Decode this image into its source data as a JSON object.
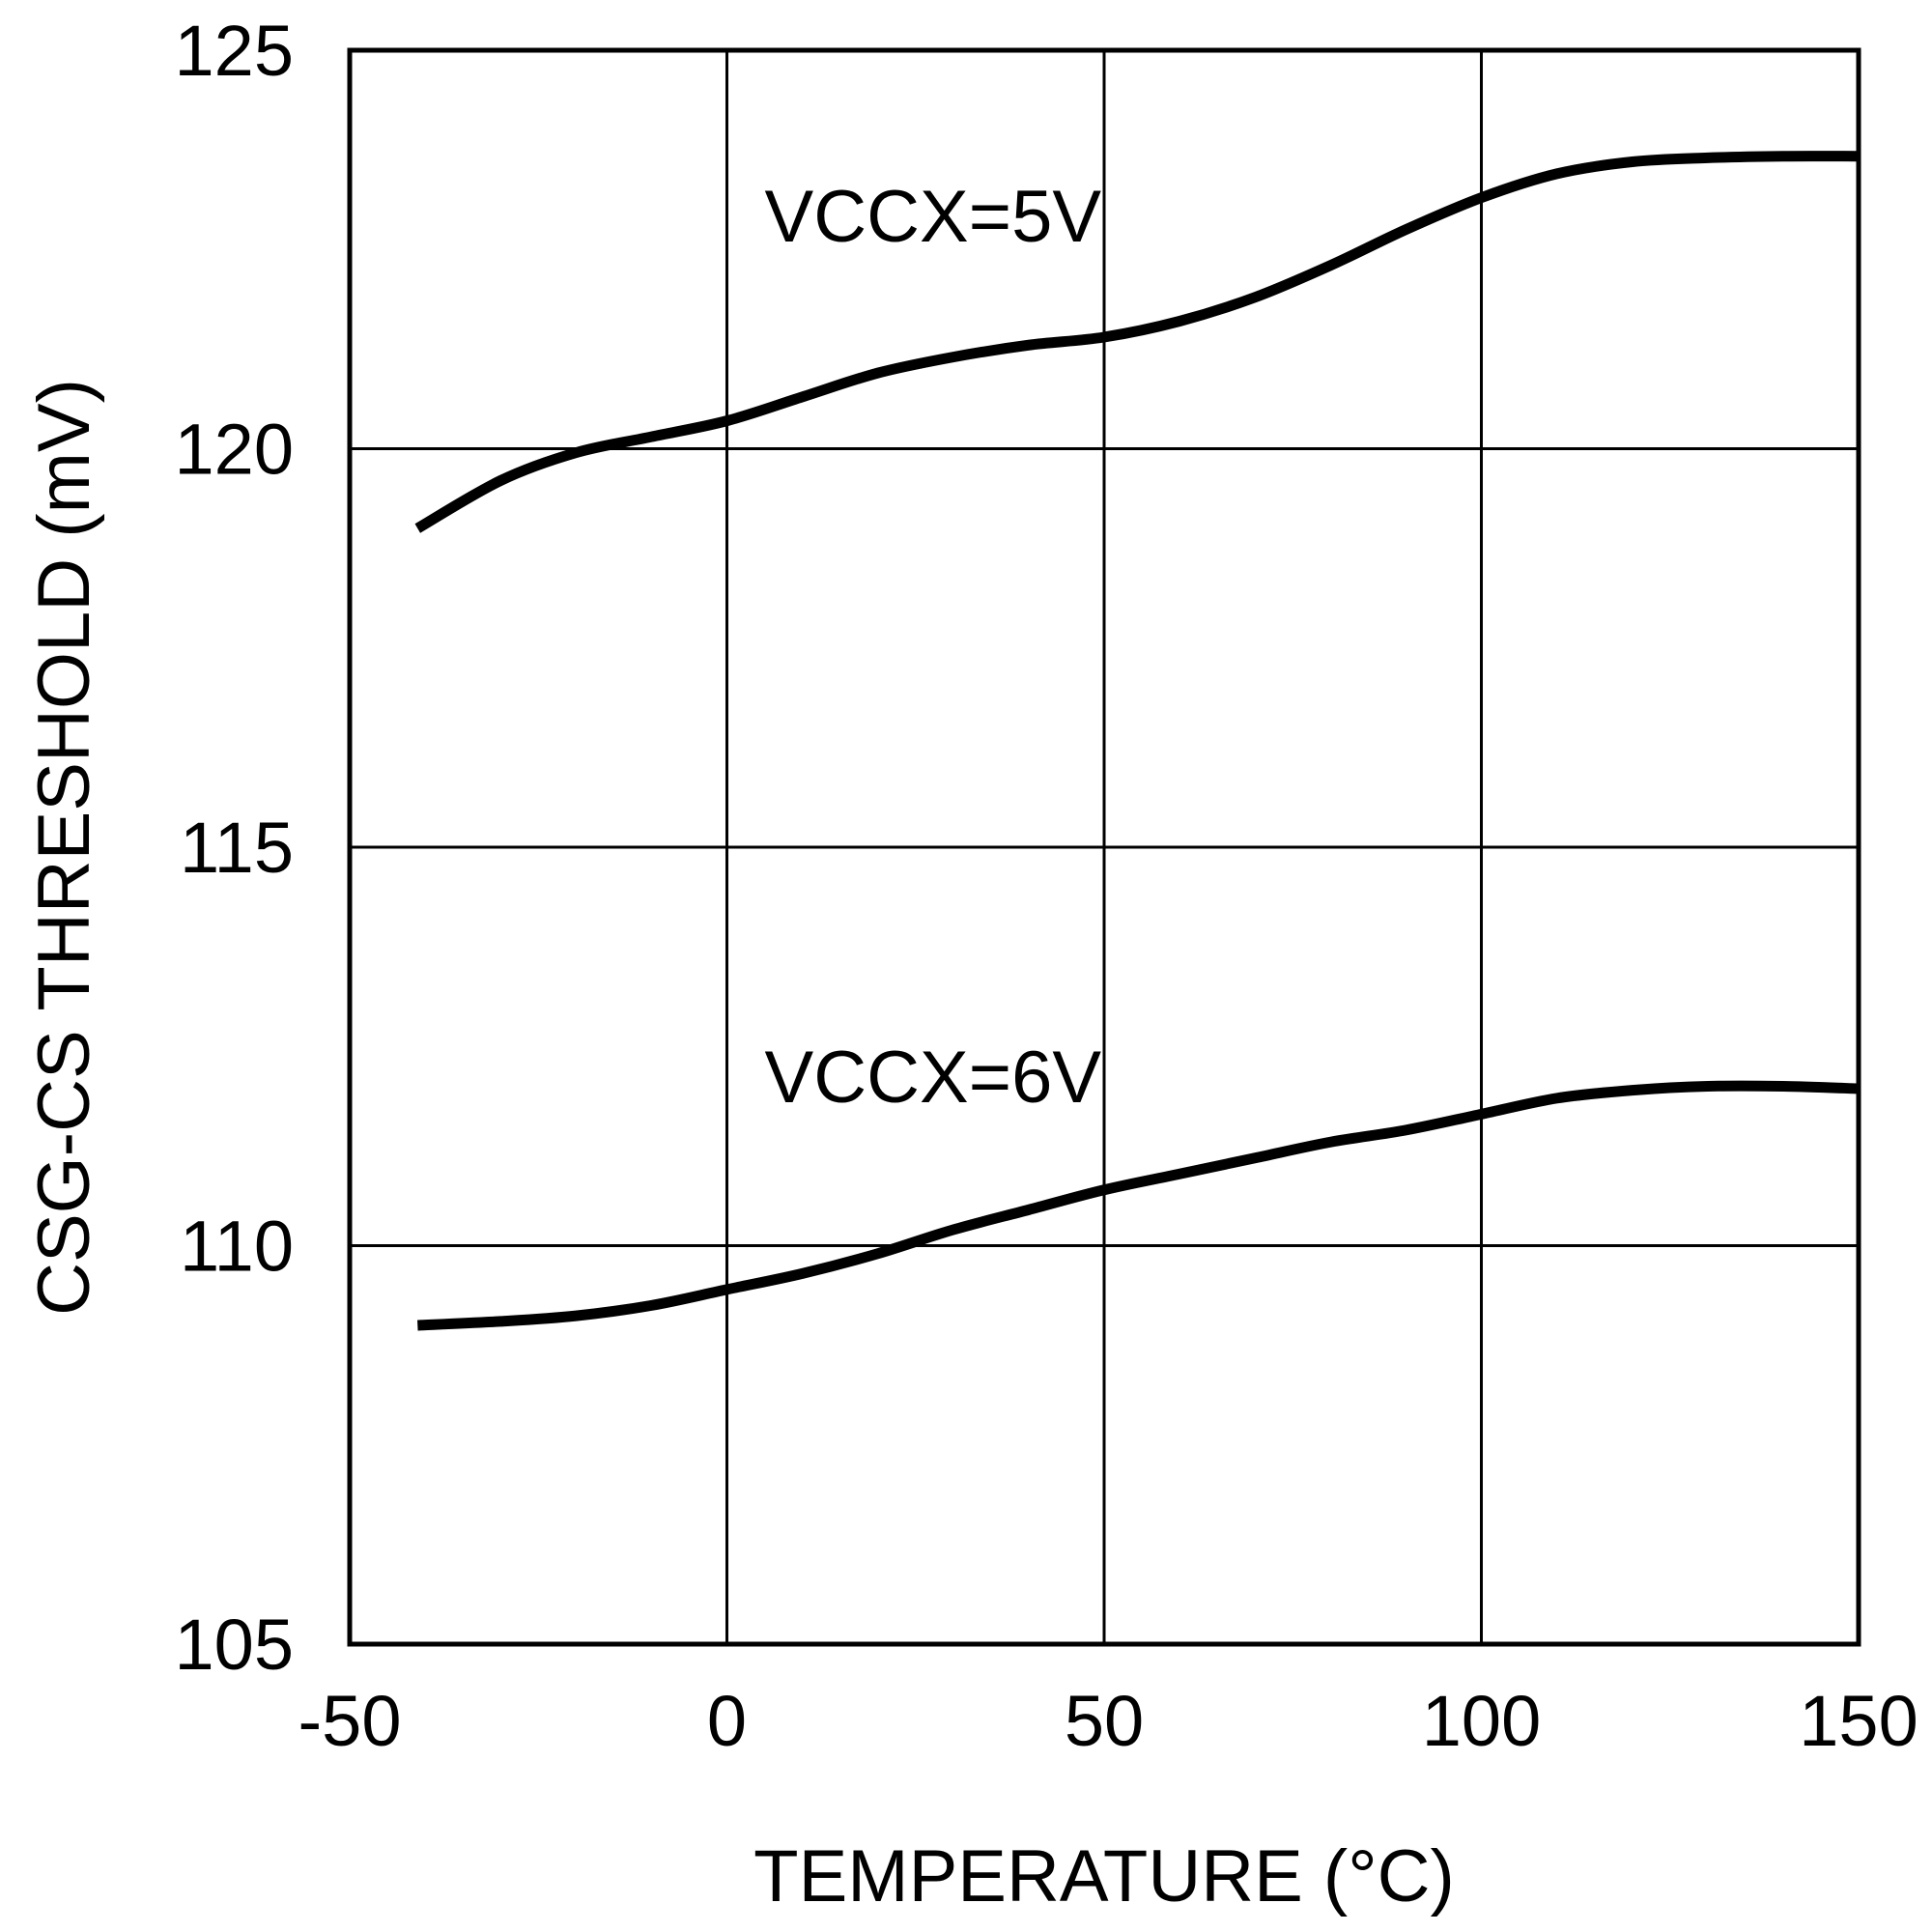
{
  "chart_data": {
    "type": "line",
    "title": "",
    "xlabel": "TEMPERATURE (°C)",
    "ylabel": "CSG-CS THRESHOLD (mV)",
    "xlim": [
      -50,
      150
    ],
    "ylim": [
      105,
      125
    ],
    "grid": true,
    "legend": "none",
    "x_ticks": [
      -50,
      0,
      50,
      100,
      150
    ],
    "y_ticks": [
      105,
      110,
      115,
      120,
      125
    ],
    "x_tick_labels": [
      "-50",
      "0",
      "50",
      "100",
      "150"
    ],
    "y_tick_labels": [
      "105",
      "110",
      "115",
      "120",
      "125"
    ],
    "series": [
      {
        "name": "VCCX=5V",
        "label": "VCCX=5V",
        "label_at": {
          "x": 5,
          "y": 122.6
        },
        "x": [
          -41,
          -30,
          -20,
          -10,
          0,
          10,
          20,
          30,
          40,
          50,
          60,
          70,
          80,
          90,
          100,
          110,
          120,
          130,
          140,
          150
        ],
        "values": [
          119.0,
          119.6,
          119.95,
          120.15,
          120.35,
          120.65,
          120.95,
          121.15,
          121.3,
          121.4,
          121.6,
          121.9,
          122.3,
          122.75,
          123.15,
          123.45,
          123.6,
          123.65,
          123.67,
          123.67
        ]
      },
      {
        "name": "VCCX=6V",
        "label": "VCCX=6V",
        "label_at": {
          "x": 5,
          "y": 111.8
        },
        "x": [
          -41,
          -30,
          -20,
          -10,
          0,
          10,
          20,
          30,
          40,
          50,
          60,
          70,
          80,
          90,
          100,
          110,
          120,
          130,
          140,
          150
        ],
        "values": [
          109.0,
          109.05,
          109.12,
          109.25,
          109.45,
          109.65,
          109.9,
          110.2,
          110.45,
          110.7,
          110.9,
          111.1,
          111.3,
          111.45,
          111.65,
          111.85,
          111.95,
          112.0,
          112.0,
          111.97
        ]
      }
    ]
  }
}
